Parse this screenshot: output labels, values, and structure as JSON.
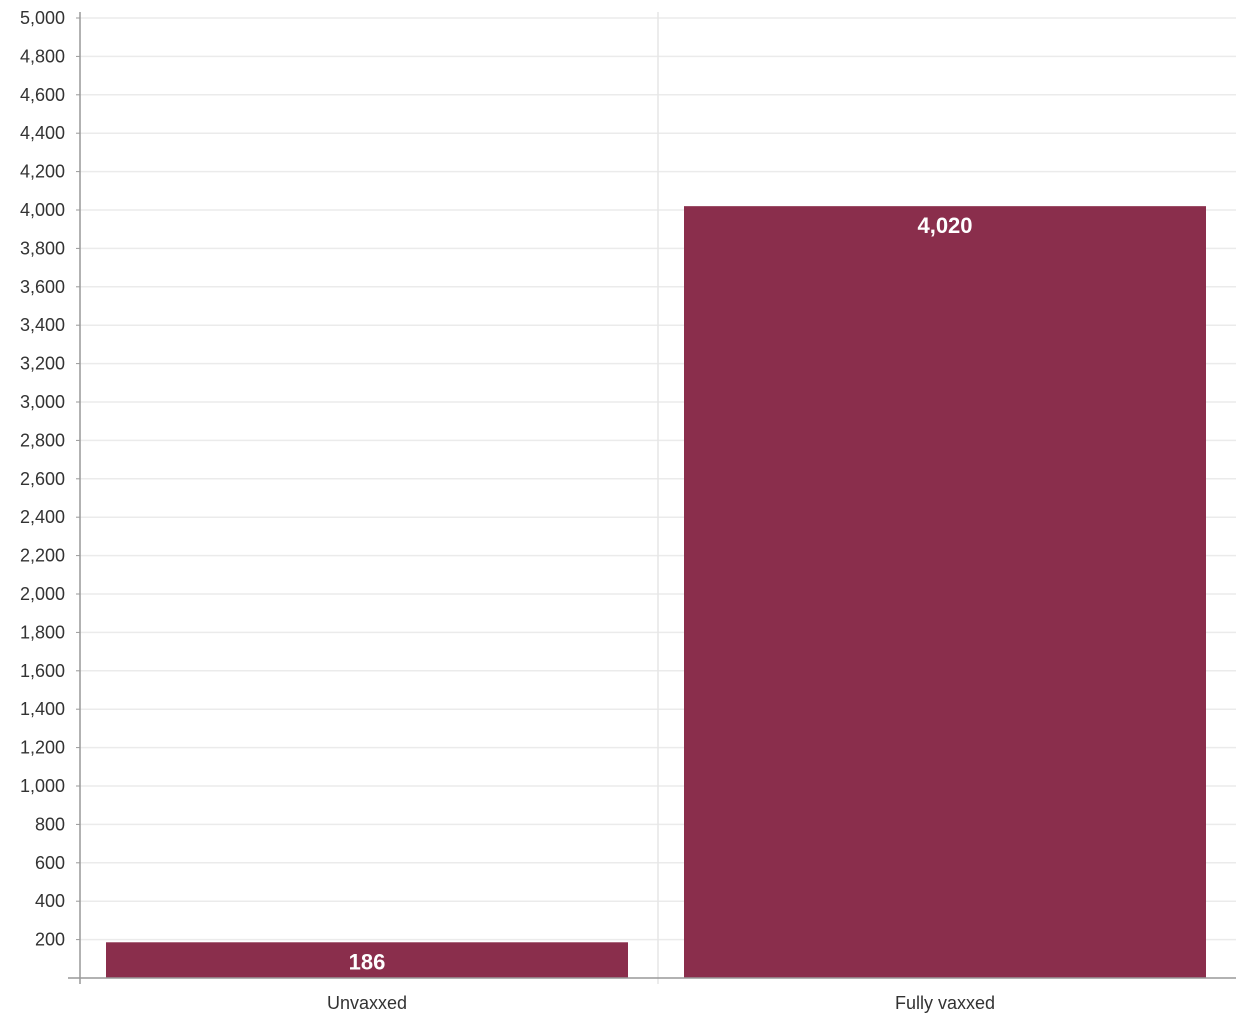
{
  "chart_data": {
    "type": "bar",
    "categories": [
      "Unvaxxed",
      "Fully vaxxed"
    ],
    "values": [
      186,
      4020
    ],
    "data_labels": [
      "186",
      "4,020"
    ],
    "ylim": [
      0,
      5000
    ],
    "ytick_step": 200,
    "ytick_labels": [
      "200",
      "400",
      "600",
      "800",
      "1,000",
      "1,200",
      "1,400",
      "1,600",
      "1,800",
      "2,000",
      "2,200",
      "2,400",
      "2,600",
      "2,800",
      "3,000",
      "3,200",
      "3,400",
      "3,600",
      "3,800",
      "4,000",
      "4,200",
      "4,400",
      "4,600",
      "4,800",
      "5,000"
    ],
    "title": "",
    "xlabel": "",
    "ylabel": "",
    "grid": true,
    "legend": "none",
    "bar_color": "#8a2e4c",
    "grid_color": "#ebebeb",
    "axis_color": "#999999"
  }
}
